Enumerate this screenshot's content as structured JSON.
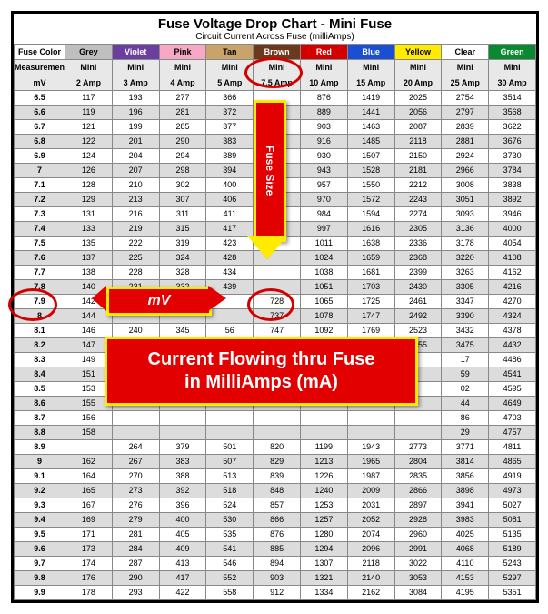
{
  "title": "Fuse Voltage Drop Chart - Mini Fuse",
  "subtitle": "Circuit Current Across Fuse (milliAmps)",
  "header1_first": "Fuse Color",
  "header2_first": "Measurement",
  "header3_first": "mV",
  "colors": [
    {
      "name": "Grey",
      "bg": "#bfbfbf",
      "fg": "#000"
    },
    {
      "name": "Violet",
      "bg": "#6a3fa0",
      "fg": "#fff"
    },
    {
      "name": "Pink",
      "bg": "#f7a8c4",
      "fg": "#000"
    },
    {
      "name": "Tan",
      "bg": "#c9a36a",
      "fg": "#000"
    },
    {
      "name": "Brown",
      "bg": "#6b3a1e",
      "fg": "#fff"
    },
    {
      "name": "Red",
      "bg": "#d40000",
      "fg": "#fff"
    },
    {
      "name": "Blue",
      "bg": "#1a4fd4",
      "fg": "#fff"
    },
    {
      "name": "Yellow",
      "bg": "#ffeb00",
      "fg": "#000"
    },
    {
      "name": "Clear",
      "bg": "#ffffff",
      "fg": "#000"
    },
    {
      "name": "Green",
      "bg": "#0a8a2f",
      "fg": "#fff"
    }
  ],
  "amp_top": "Mini",
  "amps": [
    "2 Amp",
    "3 Amp",
    "4 Amp",
    "5 Amp",
    "7.5 Amp",
    "10 Amp",
    "15 Amp",
    "20 Amp",
    "25 Amp",
    "30 Amp"
  ],
  "rows": [
    [
      "6.5",
      117,
      193,
      277,
      366,
      "",
      876,
      1419,
      2025,
      2754,
      3514
    ],
    [
      "6.6",
      119,
      196,
      281,
      372,
      608,
      889,
      1441,
      2056,
      2797,
      3568
    ],
    [
      "6.7",
      121,
      199,
      285,
      377,
      618,
      903,
      1463,
      2087,
      2839,
      3622
    ],
    [
      "6.8",
      122,
      201,
      290,
      383,
      627,
      916,
      1485,
      2118,
      2881,
      3676
    ],
    [
      "6.9",
      124,
      204,
      294,
      389,
      "",
      930,
      1507,
      2150,
      2924,
      3730
    ],
    [
      "7",
      126,
      207,
      298,
      394,
      "",
      943,
      1528,
      2181,
      2966,
      3784
    ],
    [
      "7.1",
      128,
      210,
      302,
      400,
      "",
      957,
      1550,
      2212,
      3008,
      3838
    ],
    [
      "7.2",
      129,
      213,
      307,
      406,
      "",
      970,
      1572,
      2243,
      3051,
      3892
    ],
    [
      "7.3",
      131,
      216,
      311,
      411,
      "",
      984,
      1594,
      2274,
      3093,
      3946
    ],
    [
      "7.4",
      133,
      219,
      315,
      417,
      "",
      997,
      1616,
      2305,
      3136,
      4000
    ],
    [
      "7.5",
      135,
      222,
      319,
      423,
      "",
      1011,
      1638,
      2336,
      3178,
      4054
    ],
    [
      "7.6",
      137,
      225,
      324,
      428,
      "",
      1024,
      1659,
      2368,
      3220,
      4108
    ],
    [
      "7.7",
      138,
      228,
      328,
      434,
      "",
      1038,
      1681,
      2399,
      3263,
      4162
    ],
    [
      "7.8",
      140,
      231,
      332,
      439,
      "",
      1051,
      1703,
      2430,
      3305,
      4216
    ],
    [
      "7.9",
      142,
      "",
      "",
      "",
      728,
      1065,
      1725,
      2461,
      3347,
      4270
    ],
    [
      "8",
      144,
      "",
      "",
      "",
      737,
      1078,
      1747,
      2492,
      3390,
      4324
    ],
    [
      "8.1",
      146,
      240,
      345,
      "56",
      747,
      1092,
      1769,
      2523,
      3432,
      4378
    ],
    [
      "8.2",
      147,
      243,
      349,
      462,
      756,
      1105,
      1790,
      2555,
      3475,
      4432
    ],
    [
      "8.3",
      149,
      "",
      "",
      "",
      "",
      "",
      "",
      "",
      17,
      4486
    ],
    [
      "8.4",
      151,
      "",
      "",
      "",
      "",
      "",
      "",
      "",
      59,
      4541
    ],
    [
      "8.5",
      153,
      "",
      "",
      "",
      "",
      "",
      "",
      "",
      "02",
      4595
    ],
    [
      "8.6",
      155,
      "",
      "",
      "",
      "",
      "",
      "",
      "",
      "44",
      4649
    ],
    [
      "8.7",
      156,
      "",
      "",
      "",
      "",
      "",
      "",
      "",
      "86",
      4703
    ],
    [
      "8.8",
      158,
      "",
      "",
      "",
      "",
      "",
      "",
      "",
      "29",
      4757
    ],
    [
      "8.9",
      "",
      264,
      379,
      501,
      820,
      1199,
      1943,
      2773,
      3771,
      4811
    ],
    [
      "9",
      162,
      267,
      383,
      507,
      829,
      1213,
      1965,
      2804,
      3814,
      4865
    ],
    [
      "9.1",
      164,
      270,
      388,
      513,
      839,
      1226,
      1987,
      2835,
      3856,
      4919
    ],
    [
      "9.2",
      165,
      273,
      392,
      518,
      848,
      1240,
      2009,
      2866,
      3898,
      4973
    ],
    [
      "9.3",
      167,
      276,
      396,
      524,
      857,
      1253,
      2031,
      2897,
      3941,
      5027
    ],
    [
      "9.4",
      169,
      279,
      400,
      530,
      866,
      1257,
      2052,
      2928,
      3983,
      5081
    ],
    [
      "9.5",
      171,
      281,
      405,
      535,
      876,
      1280,
      2074,
      2960,
      4025,
      5135
    ],
    [
      "9.6",
      173,
      284,
      409,
      541,
      885,
      1294,
      2096,
      2991,
      4068,
      5189
    ],
    [
      "9.7",
      174,
      287,
      413,
      546,
      894,
      1307,
      2118,
      3022,
      4110,
      5243
    ],
    [
      "9.8",
      176,
      290,
      417,
      552,
      903,
      1321,
      2140,
      3053,
      4153,
      5297
    ],
    [
      "9.9",
      178,
      293,
      422,
      558,
      912,
      1334,
      2162,
      3084,
      4195,
      5351
    ]
  ],
  "annotations": {
    "fuse_size_label": "Fuse Size",
    "mv_label": "mV",
    "big_label_line1": "Current Flowing thru Fuse",
    "big_label_line2": "in MilliAmps (mA)"
  },
  "style": {
    "stripe_bg": "#dcdcdc",
    "border_color": "#888",
    "callout_bg": "#e30000",
    "callout_border": "#ffeb00",
    "oval_border": "#d40000"
  }
}
